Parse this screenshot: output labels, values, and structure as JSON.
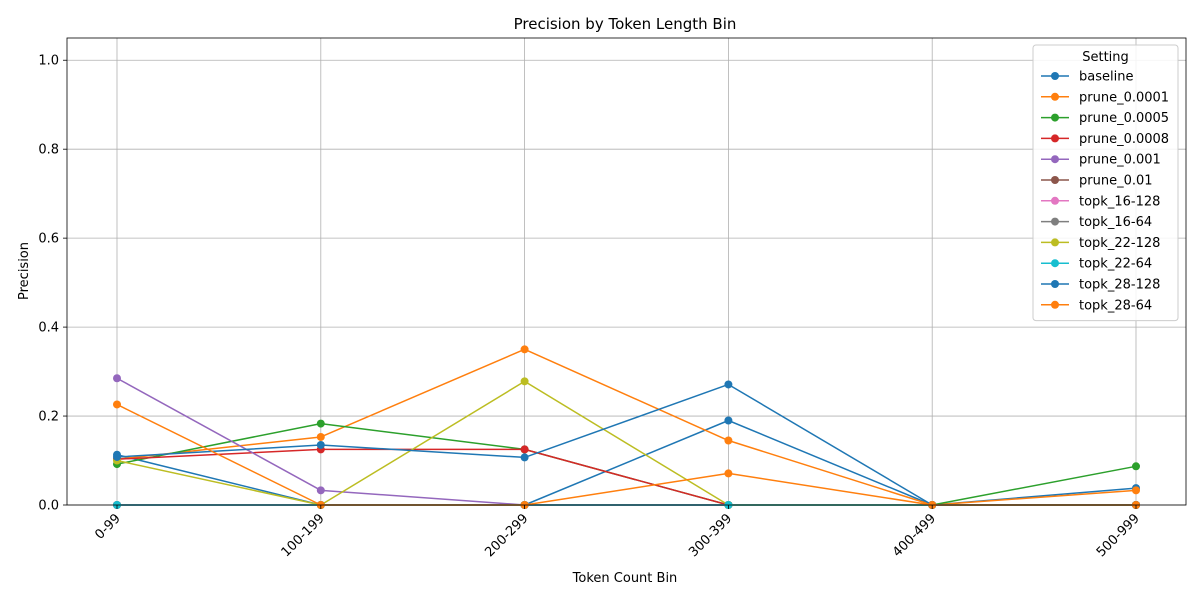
{
  "colors": {
    "grid": "#b0b0b0",
    "axis": "#000000",
    "background": "#ffffff",
    "legend_border": "#cccccc"
  },
  "chart_data": {
    "type": "line",
    "title": "Precision by Token Length Bin",
    "xlabel": "Token Count Bin",
    "ylabel": "Precision",
    "categories": [
      "0-99",
      "100-199",
      "200-299",
      "300-399",
      "400-499",
      "500-999"
    ],
    "ylim": [
      0,
      1.05
    ],
    "yticks": [
      "0.0",
      "0.2",
      "0.4",
      "0.6",
      "0.8",
      "1.0"
    ],
    "grid": true,
    "legend_title": "Setting",
    "legend_position": "top-right",
    "markers": "circle",
    "series": [
      {
        "name": "baseline",
        "color": "#1f77b4",
        "values": [
          0.113,
          0,
          0,
          0.19,
          0,
          0.038
        ]
      },
      {
        "name": "prune_0.0001",
        "color": "#ff7f0e",
        "values": [
          0.103,
          0.153,
          0.35,
          0.145,
          0,
          0.033
        ]
      },
      {
        "name": "prune_0.0005",
        "color": "#2ca02c",
        "values": [
          0.092,
          0.183,
          0.125,
          0,
          0,
          0.087
        ]
      },
      {
        "name": "prune_0.0008",
        "color": "#d62728",
        "values": [
          0.103,
          0.125,
          0.125,
          0,
          0,
          0
        ]
      },
      {
        "name": "prune_0.001",
        "color": "#9467bd",
        "values": [
          0.285,
          0.033,
          0,
          0,
          0,
          0
        ]
      },
      {
        "name": "prune_0.01",
        "color": "#8c564b",
        "values": [
          0,
          0,
          0,
          0,
          0,
          0
        ]
      },
      {
        "name": "topk_16-128",
        "color": "#e377c2",
        "values": [
          0,
          0,
          0,
          0,
          0,
          0
        ]
      },
      {
        "name": "topk_16-64",
        "color": "#7f7f7f",
        "values": [
          0,
          0,
          0,
          0,
          0,
          0
        ]
      },
      {
        "name": "topk_22-128",
        "color": "#bcbd22",
        "values": [
          0.1,
          0,
          0.278,
          0,
          0,
          0
        ]
      },
      {
        "name": "topk_22-64",
        "color": "#17becf",
        "values": [
          0,
          0,
          0,
          0,
          0,
          0
        ]
      },
      {
        "name": "topk_28-128",
        "color": "#1f77b4",
        "values": [
          0.108,
          0.135,
          0.107,
          0.271,
          0,
          0
        ]
      },
      {
        "name": "topk_28-64",
        "color": "#ff7f0e",
        "values": [
          0.226,
          0,
          0,
          0.071,
          0,
          0
        ]
      }
    ]
  }
}
